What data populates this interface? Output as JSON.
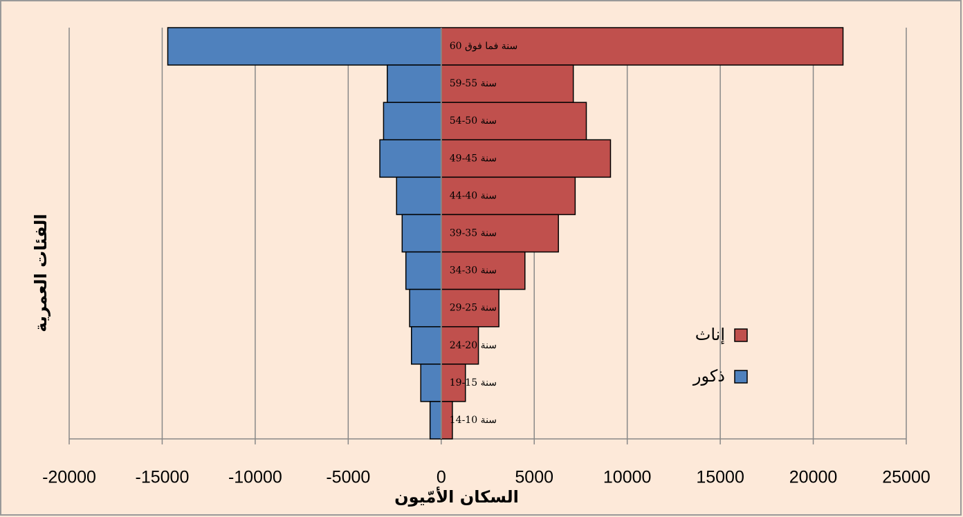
{
  "chart_data": {
    "type": "bar",
    "orientation": "horizontal",
    "xlabel": "السكان الأمّيون",
    "ylabel": "الفئات العمرية",
    "categories": [
      "60 سنة فما فوق",
      "59-55 سنة",
      "54-50 سنة",
      "49-45 سنة",
      "44-40 سنة",
      "39-35 سنة",
      "34-30 سنة",
      "29-25 سنة",
      "24-20 سنة",
      "19-15 سنة",
      "14-10 سنة"
    ],
    "series": [
      {
        "name": "إناث",
        "color": "#c0504d",
        "values": [
          21600,
          7100,
          7800,
          9100,
          7200,
          6300,
          4500,
          3100,
          2000,
          1300,
          600
        ]
      },
      {
        "name": "ذكور",
        "color": "#4f81bd",
        "values": [
          -14700,
          -2900,
          -3100,
          -3300,
          -2400,
          -2100,
          -1900,
          -1700,
          -1600,
          -1100,
          -600
        ]
      }
    ],
    "xlim": [
      -20000,
      25000
    ],
    "xticks": [
      -20000,
      -15000,
      -10000,
      -5000,
      0,
      5000,
      10000,
      15000,
      20000,
      25000
    ],
    "grid": true,
    "legend": "right"
  }
}
